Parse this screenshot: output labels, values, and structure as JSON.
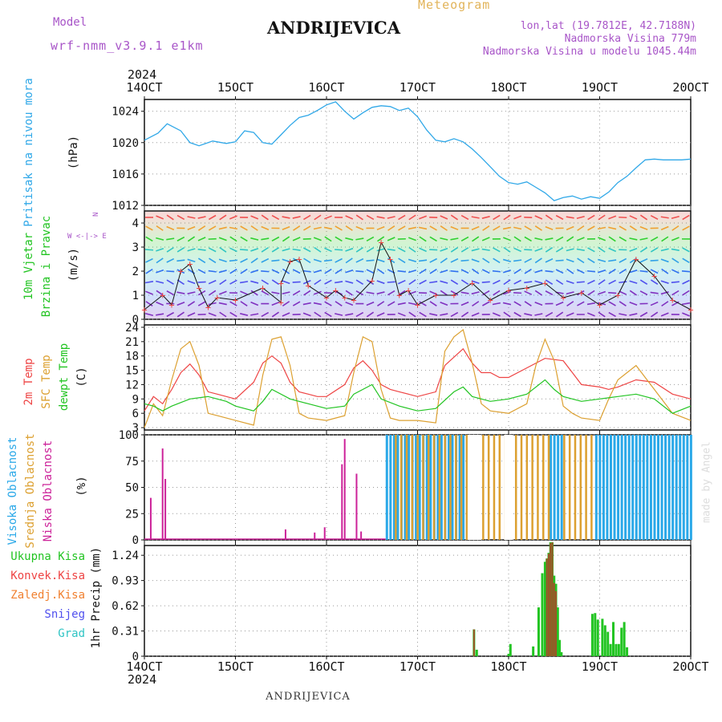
{
  "header": {
    "title": "ANDRIJEVICA",
    "meteogram": "Meteogram",
    "model_label": "Model",
    "model_version": "wrf-nmm_v3.9.1 e1km",
    "lonlat": "lon,lat (19.7812E, 42.7188N)",
    "elevation": "Nadmorska Visina 779m",
    "model_elevation": "Nadmorska Visina u modelu 1045.44m",
    "year": "2024"
  },
  "footer": {
    "title": "ANDRIJEVICA",
    "credit": "made by Angel"
  },
  "colors": {
    "pressure": "#30a8e8",
    "t2m": "#ee4444",
    "tsfc": "#dca030",
    "dewpt": "#22c422",
    "high": "#2aa8e8",
    "mid": "#dca030",
    "low": "#cc2299",
    "rain": "#22c422",
    "conv": "#ee4444",
    "frz": "#f08030",
    "snow": "#5050ee",
    "grad": "#30c4c4"
  },
  "chart_data": [
    {
      "type": "line",
      "panel": "pressure",
      "x_ticks": [
        "14OCT",
        "15OCT",
        "16OCT",
        "17OCT",
        "18OCT",
        "19OCT",
        "20OCT"
      ],
      "ylabel": "Pritisak na nivou mora",
      "unit": "(hPa)",
      "ylim": [
        1012,
        1025.5
      ],
      "y_ticks": [
        1012,
        1016,
        1020,
        1024
      ],
      "series": [
        {
          "name": "Pritisak na nivou mora",
          "x": [
            0,
            0.15,
            0.25,
            0.4,
            0.5,
            0.6,
            0.75,
            0.9,
            1.0,
            1.1,
            1.2,
            1.3,
            1.4,
            1.5,
            1.6,
            1.7,
            1.8,
            1.9,
            2.0,
            2.1,
            2.2,
            2.3,
            2.4,
            2.5,
            2.6,
            2.7,
            2.8,
            2.9,
            3.0,
            3.1,
            3.2,
            3.3,
            3.4,
            3.5,
            3.6,
            3.7,
            3.8,
            3.9,
            4.0,
            4.1,
            4.2,
            4.3,
            4.4,
            4.5,
            4.6,
            4.7,
            4.8,
            4.9,
            5.0,
            5.1,
            5.2,
            5.3,
            5.4,
            5.5,
            5.6,
            5.7,
            5.8,
            5.9,
            6.0
          ],
          "values": [
            1020.3,
            1021.2,
            1022.4,
            1021.5,
            1020.0,
            1019.6,
            1020.2,
            1019.9,
            1020.1,
            1021.5,
            1021.3,
            1020.0,
            1019.8,
            1021.0,
            1022.2,
            1023.2,
            1023.5,
            1024.1,
            1024.8,
            1025.2,
            1024.0,
            1023.0,
            1023.8,
            1024.5,
            1024.7,
            1024.6,
            1024.1,
            1024.4,
            1023.3,
            1021.6,
            1020.3,
            1020.1,
            1020.5,
            1020.1,
            1019.2,
            1018.1,
            1016.9,
            1015.7,
            1014.9,
            1014.7,
            1015.0,
            1014.3,
            1013.6,
            1012.6,
            1013.0,
            1013.2,
            1012.8,
            1013.1,
            1012.9,
            1013.7,
            1014.9,
            1015.7,
            1016.8,
            1017.8,
            1017.9,
            1017.8,
            1017.8,
            1017.8,
            1017.9
          ]
        }
      ]
    },
    {
      "type": "line",
      "panel": "wind",
      "x_ticks": [
        "14OCT",
        "15OCT",
        "16OCT",
        "17OCT",
        "18OCT",
        "19OCT",
        "20OCT"
      ],
      "ylabel": "10m Vjetar Brzina i Pravac",
      "unit": "(m/s)",
      "ylim": [
        0,
        4.5
      ],
      "y_ticks": [
        0,
        1,
        2,
        3,
        4
      ],
      "compass": "W <-|-> E",
      "series": [
        {
          "name": "Brzina",
          "x": [
            0,
            0.2,
            0.3,
            0.4,
            0.5,
            0.6,
            0.7,
            0.8,
            1.0,
            1.3,
            1.5,
            1.5,
            1.6,
            1.7,
            1.8,
            2.0,
            2.1,
            2.2,
            2.3,
            2.5,
            2.6,
            2.7,
            2.8,
            2.9,
            3.0,
            3.2,
            3.4,
            3.6,
            3.8,
            4.0,
            4.2,
            4.4,
            4.6,
            4.8,
            5.0,
            5.2,
            5.4,
            5.6,
            5.8,
            6.0
          ],
          "values": [
            0.4,
            1.0,
            0.6,
            2.0,
            2.3,
            1.3,
            0.5,
            0.9,
            0.8,
            1.3,
            0.7,
            1.5,
            2.4,
            2.5,
            1.4,
            0.9,
            1.2,
            0.9,
            0.8,
            1.6,
            3.2,
            2.5,
            1.0,
            1.2,
            0.6,
            1.0,
            1.0,
            1.5,
            0.8,
            1.2,
            1.3,
            1.5,
            0.9,
            1.1,
            0.6,
            1.0,
            2.5,
            1.8,
            0.8,
            0.4
          ]
        }
      ]
    },
    {
      "type": "line",
      "panel": "temperature",
      "x_ticks": [
        "14OCT",
        "15OCT",
        "16OCT",
        "17OCT",
        "18OCT",
        "19OCT",
        "20OCT"
      ],
      "ylabel": "2m Temp SFC Temp dewpt Temp",
      "unit": "(C)",
      "ylim": [
        2.5,
        24.5
      ],
      "y_ticks": [
        3,
        6,
        9,
        12,
        15,
        18,
        21,
        24
      ],
      "series": [
        {
          "name": "2m Temp",
          "x": [
            0,
            0.1,
            0.2,
            0.3,
            0.4,
            0.5,
            0.6,
            0.7,
            0.8,
            0.9,
            1.0,
            1.2,
            1.3,
            1.4,
            1.5,
            1.6,
            1.7,
            1.8,
            1.9,
            2.0,
            2.2,
            2.3,
            2.4,
            2.5,
            2.6,
            2.7,
            2.8,
            2.9,
            3.0,
            3.2,
            3.3,
            3.5,
            3.6,
            3.7,
            3.8,
            3.9,
            4.0,
            4.2,
            4.4,
            4.6,
            4.7,
            4.8,
            5.0,
            5.1,
            5.2,
            5.4,
            5.6,
            5.8,
            6.0
          ],
          "values": [
            6.5,
            9.5,
            8.0,
            11.0,
            14.5,
            16.3,
            14.0,
            10.5,
            10.0,
            9.5,
            9.0,
            12.5,
            16.5,
            18.0,
            16.5,
            12.5,
            10.5,
            10.0,
            9.5,
            9.5,
            12.0,
            15.5,
            17.0,
            15.0,
            12.0,
            11.0,
            10.5,
            10.0,
            9.5,
            10.5,
            16.0,
            19.5,
            16.5,
            14.5,
            14.5,
            13.5,
            13.5,
            15.5,
            17.5,
            17.0,
            14.5,
            12.0,
            11.5,
            11.0,
            11.5,
            13.0,
            12.5,
            10.0,
            9.0
          ]
        },
        {
          "name": "SFC Temp",
          "x": [
            0,
            0.1,
            0.2,
            0.3,
            0.4,
            0.5,
            0.6,
            0.7,
            0.8,
            1.0,
            1.2,
            1.3,
            1.4,
            1.5,
            1.6,
            1.7,
            1.8,
            2.0,
            2.2,
            2.3,
            2.4,
            2.5,
            2.6,
            2.7,
            2.8,
            3.0,
            3.2,
            3.3,
            3.4,
            3.5,
            3.6,
            3.7,
            3.8,
            4.0,
            4.2,
            4.3,
            4.4,
            4.5,
            4.6,
            4.7,
            4.8,
            5.0,
            5.1,
            5.2,
            5.4,
            5.6,
            5.8,
            6.0
          ],
          "values": [
            3.0,
            8.0,
            5.5,
            13.0,
            19.5,
            21.0,
            16.0,
            6.0,
            5.5,
            4.5,
            3.5,
            14.0,
            21.5,
            22.0,
            16.0,
            6.0,
            5.0,
            4.5,
            5.5,
            14.5,
            22.0,
            21.0,
            11.0,
            5.0,
            4.5,
            4.5,
            4.0,
            19.0,
            22.0,
            23.5,
            16.5,
            8.0,
            6.5,
            6.0,
            8.0,
            16.0,
            21.5,
            17.0,
            7.5,
            6.0,
            5.0,
            4.5,
            9.0,
            13.0,
            16.0,
            11.0,
            6.0,
            4.5
          ]
        },
        {
          "name": "dewpt Temp",
          "x": [
            0,
            0.1,
            0.2,
            0.3,
            0.5,
            0.7,
            0.9,
            1.0,
            1.2,
            1.3,
            1.4,
            1.6,
            1.8,
            2.0,
            2.2,
            2.3,
            2.5,
            2.6,
            2.8,
            3.0,
            3.2,
            3.4,
            3.5,
            3.6,
            3.8,
            4.0,
            4.2,
            4.4,
            4.5,
            4.6,
            4.8,
            5.0,
            5.2,
            5.4,
            5.6,
            5.8,
            6.0
          ],
          "values": [
            8.0,
            7.5,
            6.5,
            7.5,
            9.0,
            9.5,
            8.5,
            7.5,
            6.5,
            8.5,
            11.0,
            9.0,
            8.0,
            7.0,
            7.5,
            10.0,
            12.0,
            9.0,
            7.5,
            6.5,
            7.0,
            10.5,
            11.5,
            9.5,
            8.5,
            9.0,
            10.0,
            13.0,
            11.0,
            9.5,
            8.5,
            9.0,
            9.5,
            10.0,
            9.0,
            6.0,
            7.5
          ]
        }
      ]
    },
    {
      "type": "bar",
      "panel": "cloud",
      "x_ticks": [
        "14OCT",
        "15OCT",
        "16OCT",
        "17OCT",
        "18OCT",
        "19OCT",
        "20OCT"
      ],
      "ylabel": "Visoka Oblacnost Srednja Oblacnost Niska Oblacnost",
      "unit": "(%)",
      "ylim": [
        0,
        100
      ],
      "y_ticks": [
        0,
        25,
        50,
        75,
        100
      ],
      "low_spikes": {
        "x": [
          0.07,
          0.2,
          0.23,
          1.55,
          1.87,
          1.98,
          2.17,
          2.2,
          2.33,
          2.38
        ],
        "values": [
          40,
          87,
          58,
          10,
          7,
          12,
          72,
          96,
          63,
          8
        ]
      },
      "high_blocks": [
        [
          2.65,
          3.6
        ],
        [
          4.45,
          4.6
        ],
        [
          4.95,
          6.0
        ]
      ],
      "mid_blocks": [
        [
          2.75,
          4.45
        ],
        [
          4.6,
          4.95
        ]
      ],
      "gaps": [
        [
          3.55,
          3.7
        ],
        [
          3.95,
          4.05
        ]
      ]
    },
    {
      "type": "bar",
      "panel": "precip",
      "x_ticks": [
        "14OCT",
        "15OCT",
        "16OCT",
        "17OCT",
        "18OCT",
        "19OCT",
        "20OCT"
      ],
      "ylabel": "1hr Precip",
      "unit": "(mm)",
      "ylim": [
        0,
        1.36
      ],
      "y_ticks": [
        0,
        0.31,
        0.62,
        0.93,
        1.24
      ],
      "series": [
        {
          "name": "Ukupna Kisa",
          "x": [
            3.62,
            3.65,
            4.0,
            4.02,
            4.27,
            4.33,
            4.37,
            4.4,
            4.42,
            4.44,
            4.46,
            4.48,
            4.5,
            4.52,
            4.54,
            4.56,
            4.58,
            4.92,
            4.95,
            4.98,
            5.03,
            5.06,
            5.09,
            5.12,
            5.15,
            5.18,
            5.21,
            5.24,
            5.27,
            5.3
          ],
          "values": [
            0.33,
            0.08,
            0.03,
            0.15,
            0.12,
            0.6,
            1.02,
            1.16,
            1.2,
            1.27,
            1.4,
            1.4,
            0.99,
            0.89,
            0.6,
            0.2,
            0.05,
            0.52,
            0.53,
            0.45,
            0.46,
            0.38,
            0.3,
            0.15,
            0.42,
            0.15,
            0.15,
            0.35,
            0.42,
            0.11
          ]
        },
        {
          "name": "Konvek.Kisa",
          "x": [
            3.62,
            4.42,
            4.44,
            4.46,
            4.48,
            4.5,
            4.52
          ],
          "values": [
            0.33,
            1.2,
            1.26,
            1.39,
            1.4,
            0.9,
            0.8
          ]
        }
      ],
      "legend": [
        "Ukupna Kisa",
        "Konvek.Kisa",
        "Zaledj.Kisa",
        "Snijeg",
        "Grad"
      ]
    }
  ]
}
